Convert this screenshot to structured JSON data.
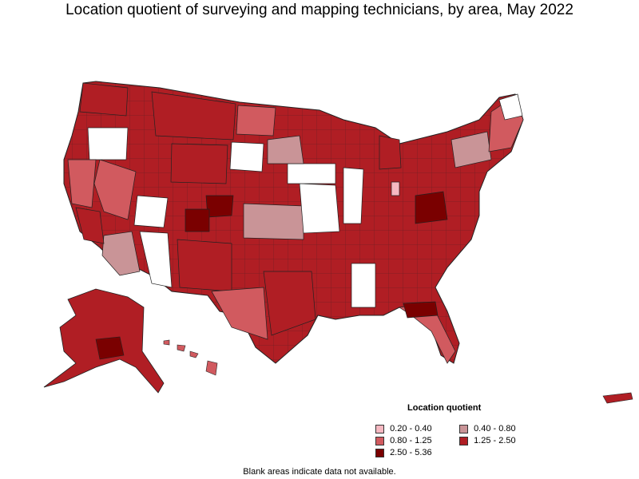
{
  "title": "Location quotient of surveying and mapping technicians, by area, May 2022",
  "legend": {
    "title": "Location quotient",
    "items": [
      {
        "label": "0.20 - 0.40",
        "color": "#f6b8c1"
      },
      {
        "label": "0.40 - 0.80",
        "color": "#c99497"
      },
      {
        "label": "0.80 - 1.25",
        "color": "#d15a5f"
      },
      {
        "label": "1.25 - 2.50",
        "color": "#b01e24"
      },
      {
        "label": "2.50 - 5.36",
        "color": "#7a0000"
      }
    ]
  },
  "note": "Blank areas indicate data not available.",
  "colors": {
    "no_data": "#ffffff",
    "border": "#222222"
  }
}
